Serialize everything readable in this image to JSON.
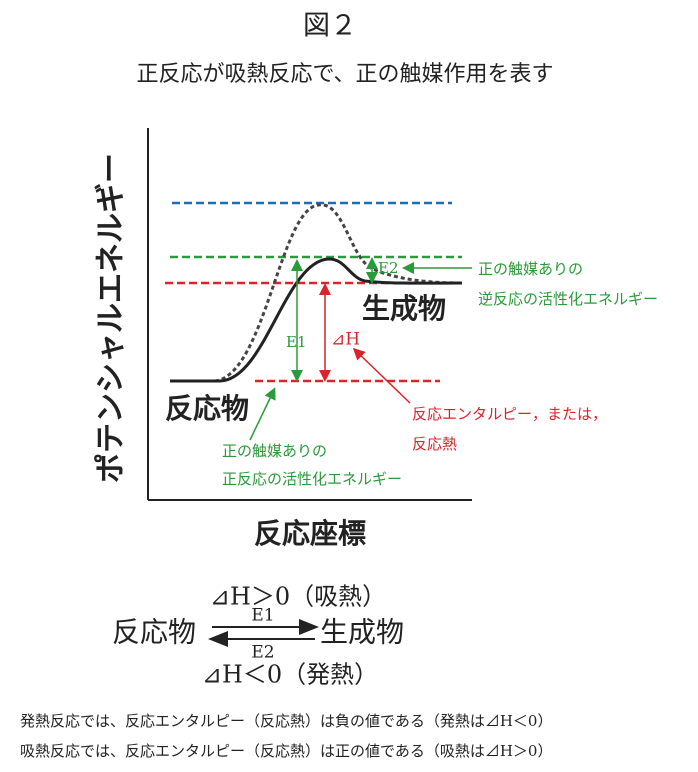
{
  "header": {
    "title": "図２",
    "subtitle": "正反応が吸熱反応で、正の触媒作用を表す"
  },
  "diagram": {
    "y_axis_label": "ポテンシャルエネルギー",
    "x_axis_label": "反応座標",
    "reactant": "反応物",
    "product": "生成物",
    "e1": "E1",
    "e2": "E2",
    "dh": "⊿H",
    "note_reverse": [
      "正の触媒ありの",
      "逆反応の活性化エネルギー"
    ],
    "note_enthalpy": [
      "反応エンタルピー，または，",
      "反応熱"
    ],
    "note_forward": [
      "正の触媒ありの",
      "正反応の活性化エネルギー"
    ]
  },
  "equation": {
    "top": "⊿H＞0（吸熱）",
    "left": "反応物",
    "forward": "E1",
    "backward": "E2",
    "right": "生成物",
    "bottom": "⊿H＜0（発熱）"
  },
  "notes": [
    "発熱反応では、反応エンタルピー（反応熱）は負の値である（発熱は⊿H＜0）",
    "吸熱反応では、反応エンタルピー（反応熱）は正の値である（吸熱は⊿H＞0）"
  ]
}
